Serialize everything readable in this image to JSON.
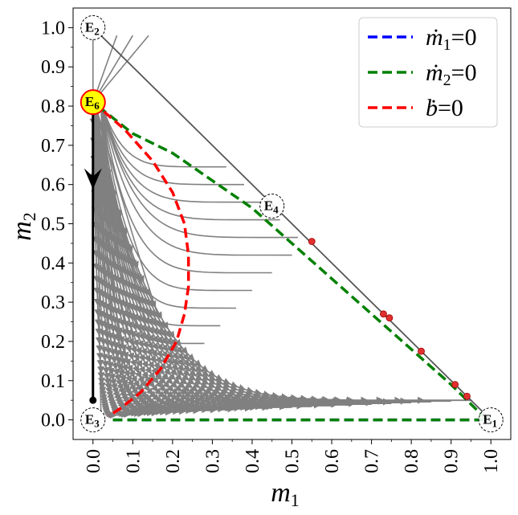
{
  "chart_data": {
    "type": "line",
    "xlabel": "m",
    "xlabel_sub": "1",
    "ylabel": "m",
    "ylabel_sub": "2",
    "xlim": [
      -0.05,
      1.05
    ],
    "ylim": [
      -0.05,
      1.05
    ],
    "xticks": [
      "0.0",
      "0.1",
      "0.2",
      "0.3",
      "0.4",
      "0.5",
      "0.6",
      "0.7",
      "0.8",
      "0.9",
      "1.0"
    ],
    "yticks": [
      "0.0",
      "0.1",
      "0.2",
      "0.3",
      "0.4",
      "0.5",
      "0.6",
      "0.7",
      "0.8",
      "0.9",
      "1.0"
    ],
    "grid": false,
    "legend_position": "top-right",
    "series": [
      {
        "name": "ṁ₁=0",
        "legend_main": "ṁ",
        "legend_sub": "1",
        "legend_rhs": "=0",
        "color": "#0000ff",
        "style": "dashed",
        "x": [
          0.05,
          1.0
        ],
        "y": [
          0.0,
          0.0
        ]
      },
      {
        "name": "ṁ₂=0",
        "legend_main": "ṁ",
        "legend_sub": "2",
        "legend_rhs": "=0",
        "color": "#008000",
        "style": "dashed",
        "x": [
          0.05,
          1.0,
          0.99,
          0.1,
          0.0,
          0.05
        ],
        "y": [
          0.0,
          0.0,
          0.0,
          0.73,
          0.81,
          0.0
        ],
        "segments": [
          {
            "x": [
              0.05,
              1.0
            ],
            "y": [
              0.0,
              0.0
            ]
          },
          {
            "x": [
              0.99,
              0.95,
              0.9,
              0.8,
              0.7,
              0.6,
              0.5,
              0.4,
              0.3,
              0.2,
              0.1,
              0.0
            ],
            "y": [
              0.0,
              0.04,
              0.09,
              0.18,
              0.27,
              0.36,
              0.45,
              0.54,
              0.61,
              0.68,
              0.73,
              0.81
            ]
          }
        ]
      },
      {
        "name": "ḃ=0",
        "legend_main": "ḃ",
        "legend_sub": "",
        "legend_rhs": "=0",
        "color": "#ff0000",
        "style": "dashed",
        "x": [
          0.0,
          0.08,
          0.15,
          0.2,
          0.23,
          0.24,
          0.24,
          0.23,
          0.21,
          0.17,
          0.12,
          0.07,
          0.04
        ],
        "y": [
          0.81,
          0.74,
          0.66,
          0.58,
          0.5,
          0.42,
          0.34,
          0.27,
          0.2,
          0.13,
          0.07,
          0.03,
          0.01
        ]
      }
    ],
    "boundary": {
      "x": [
        0.0,
        1.0
      ],
      "y": [
        1.0,
        0.0
      ]
    },
    "trajectory": {
      "x": [
        0.0,
        0.0
      ],
      "y": [
        0.81,
        0.05
      ],
      "arrow_at_y": 0.6
    },
    "red_points": [
      {
        "x": 0.55,
        "y": 0.455
      },
      {
        "x": 0.73,
        "y": 0.27
      },
      {
        "x": 0.745,
        "y": 0.26
      },
      {
        "x": 0.825,
        "y": 0.175
      },
      {
        "x": 0.91,
        "y": 0.09
      },
      {
        "x": 0.94,
        "y": 0.06
      }
    ],
    "equilibria": [
      {
        "label": "E",
        "sub": "2",
        "x": 0.0,
        "y": 1.0,
        "style": "dashed"
      },
      {
        "label": "E",
        "sub": "6",
        "x": 0.0,
        "y": 0.81,
        "style": "filled"
      },
      {
        "label": "E",
        "sub": "4",
        "x": 0.45,
        "y": 0.545,
        "style": "dashed"
      },
      {
        "label": "E",
        "sub": "3",
        "x": 0.0,
        "y": 0.0,
        "style": "dashed"
      },
      {
        "label": "E",
        "sub": "1",
        "x": 1.0,
        "y": 0.0,
        "style": "dashed"
      }
    ],
    "streamlines": {
      "color": "#808080",
      "families": [
        {
          "name": "upper",
          "start_x": [
            0.06,
            0.1,
            0.14,
            0.18,
            0.22,
            0.26,
            0.3,
            0.35,
            0.4,
            0.45,
            0.5,
            0.55,
            0.6,
            0.65,
            0.7,
            0.75,
            0.8,
            0.85,
            0.9,
            0.95
          ],
          "converge_to": [
            0.0,
            0.81
          ]
        },
        {
          "name": "rising",
          "start_x": [
            0.02,
            0.05,
            0.09,
            0.14,
            0.2,
            0.26
          ],
          "converge_to": [
            0.0,
            0.81
          ]
        }
      ]
    }
  }
}
